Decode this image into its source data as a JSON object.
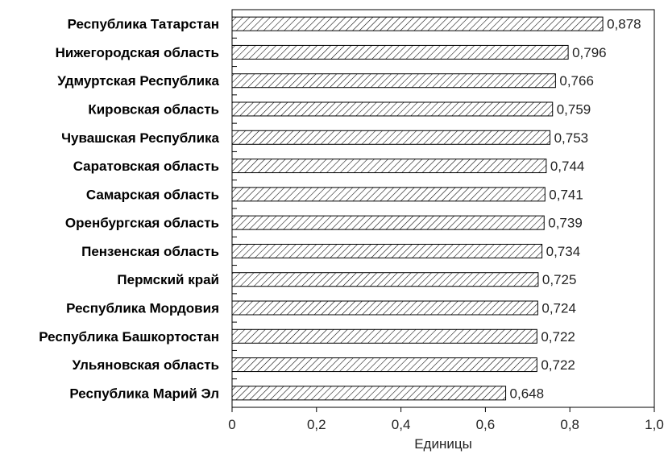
{
  "chart_data": {
    "type": "bar",
    "orientation": "horizontal",
    "categories": [
      "Республика Татарстан",
      "Нижегородская область",
      "Удмуртская Республика",
      "Кировская область",
      "Чувашская Республика",
      "Саратовская область",
      "Самарская область",
      "Оренбургская область",
      "Пензенская область",
      "Пермский край",
      "Республика Мордовия",
      "Республика Башкортостан",
      "Ульяновская область",
      "Республика Марий Эл"
    ],
    "values": [
      0.878,
      0.796,
      0.766,
      0.759,
      0.753,
      0.744,
      0.741,
      0.739,
      0.734,
      0.725,
      0.724,
      0.722,
      0.722,
      0.648
    ],
    "value_labels": [
      "0,878",
      "0,796",
      "0,766",
      "0,759",
      "0,753",
      "0,744",
      "0,741",
      "0,739",
      "0,734",
      "0,725",
      "0,724",
      "0,722",
      "0,722",
      "0,648"
    ],
    "title": "",
    "xlabel": "Единицы",
    "ylabel": "",
    "xlim": [
      0,
      1.0
    ],
    "xticks": [
      0,
      0.2,
      0.4,
      0.6,
      0.8,
      1.0
    ],
    "xtick_labels": [
      "0",
      "0,2",
      "0,4",
      "0,6",
      "0,8",
      "1,0"
    ],
    "bar_fill": "diagonal-hatch",
    "bar_color": "#000000",
    "grid": false,
    "legend": "none"
  }
}
